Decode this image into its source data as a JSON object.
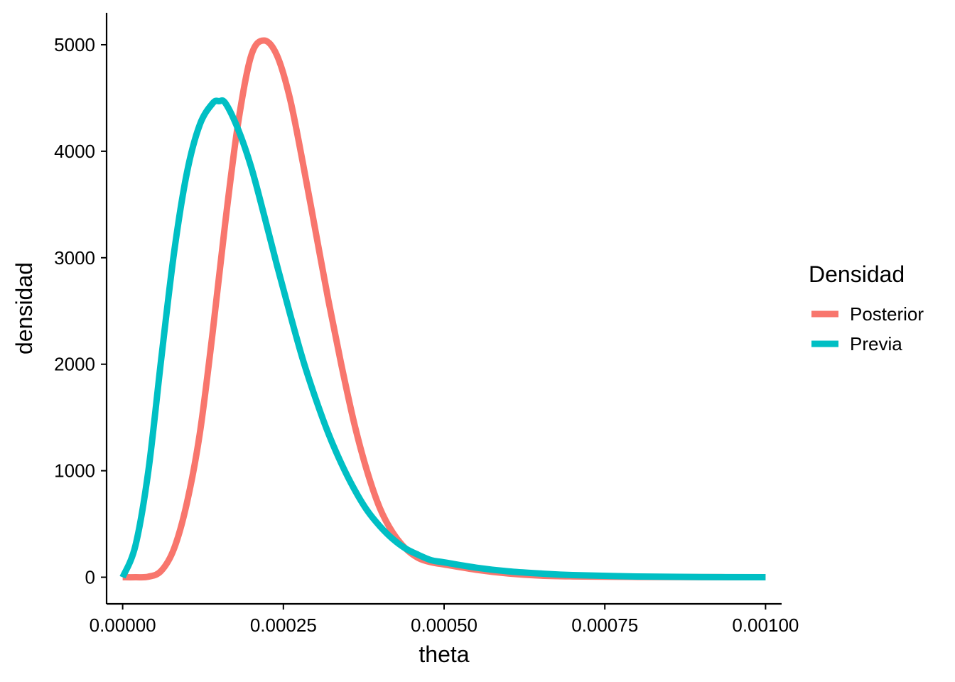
{
  "chart_data": {
    "type": "line",
    "xlabel": "theta",
    "ylabel": "densidad",
    "xlim": [
      -2.5e-05,
      0.001025
    ],
    "ylim": [
      -250,
      5300
    ],
    "x_ticks": [
      "0.00000",
      "0.00025",
      "0.00050",
      "0.00075",
      "0.00100"
    ],
    "x_tick_values": [
      0,
      0.00025,
      0.0005,
      0.00075,
      0.001
    ],
    "y_ticks": [
      "0",
      "1000",
      "2000",
      "3000",
      "4000",
      "5000"
    ],
    "y_tick_values": [
      0,
      1000,
      2000,
      3000,
      4000,
      5000
    ],
    "grid": false,
    "legend": {
      "title": "Densidad",
      "placement": "right"
    },
    "series": [
      {
        "name": "Posterior",
        "color": "#F8766D",
        "x": [
          0,
          2e-05,
          4e-05,
          6e-05,
          8e-05,
          0.0001,
          0.00012,
          0.00014,
          0.00016,
          0.00018,
          0.0002,
          0.00022,
          0.00024,
          0.00026,
          0.00028,
          0.0003,
          0.00032,
          0.00034,
          0.00036,
          0.00038,
          0.0004,
          0.00042,
          0.00044,
          0.00046,
          0.00048,
          0.0005,
          0.00055,
          0.0006,
          0.00065,
          0.0007,
          0.0008,
          0.0009,
          0.001
        ],
        "y": [
          0,
          0,
          5,
          60,
          270,
          700,
          1350,
          2300,
          3350,
          4280,
          4900,
          5040,
          4900,
          4500,
          3900,
          3250,
          2600,
          2000,
          1450,
          1000,
          650,
          420,
          270,
          180,
          140,
          120,
          70,
          35,
          15,
          8,
          3,
          1,
          0
        ]
      },
      {
        "name": "Previa",
        "color": "#00BFC4",
        "x": [
          0,
          2e-05,
          4e-05,
          6e-05,
          8e-05,
          0.0001,
          0.00012,
          0.00014,
          0.00015,
          0.00016,
          0.00018,
          0.0002,
          0.00022,
          0.00024,
          0.00026,
          0.00028,
          0.0003,
          0.00032,
          0.00034,
          0.00036,
          0.00038,
          0.0004,
          0.00042,
          0.00044,
          0.00046,
          0.00048,
          0.0005,
          0.00055,
          0.0006,
          0.00065,
          0.0007,
          0.0008,
          0.0009,
          0.001
        ],
        "y": [
          0,
          300,
          1000,
          2050,
          3050,
          3800,
          4250,
          4450,
          4470,
          4450,
          4200,
          3850,
          3400,
          2930,
          2480,
          2050,
          1680,
          1350,
          1070,
          830,
          630,
          480,
          360,
          270,
          210,
          160,
          140,
          90,
          55,
          35,
          20,
          7,
          2,
          0
        ]
      }
    ]
  }
}
